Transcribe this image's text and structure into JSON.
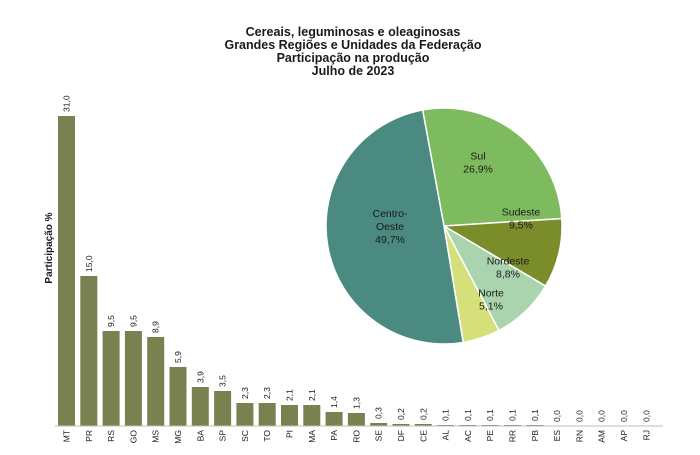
{
  "chart_data": [
    {
      "type": "bar",
      "title_lines": [
        "Cereais, leguminosas e oleaginosas",
        "Grandes Regiões e Unidades da Federação",
        "Participação na produção",
        "Julho de 2023"
      ],
      "ylabel": "Participação %",
      "xlabel": "",
      "ylim": [
        0,
        31
      ],
      "grid": false,
      "categories": [
        "MT",
        "PR",
        "RS",
        "GO",
        "MS",
        "MG",
        "BA",
        "SP",
        "SC",
        "TO",
        "PI",
        "MA",
        "PA",
        "RO",
        "SE",
        "DF",
        "CE",
        "AL",
        "AC",
        "PE",
        "RR",
        "PB",
        "ES",
        "RN",
        "AM",
        "AP",
        "RJ"
      ],
      "values": [
        31.0,
        15.0,
        9.5,
        9.5,
        8.9,
        5.9,
        3.9,
        3.5,
        2.3,
        2.3,
        2.1,
        2.1,
        1.4,
        1.3,
        0.3,
        0.2,
        0.2,
        0.1,
        0.1,
        0.1,
        0.1,
        0.1,
        0.0,
        0.0,
        0.0,
        0.0,
        0.0
      ],
      "value_labels": [
        "31,0",
        "15,0",
        "9,5",
        "9,5",
        "8,9",
        "5,9",
        "3,9",
        "3,5",
        "2,3",
        "2,3",
        "2,1",
        "2,1",
        "1,4",
        "1,3",
        "0,3",
        "0,2",
        "0,2",
        "0,1",
        "0,1",
        "0,1",
        "0,1",
        "0,1",
        "0,0",
        "0,0",
        "0,0",
        "0,0",
        "0,0"
      ],
      "bar_color": "#7a8150"
    },
    {
      "type": "pie",
      "slices": [
        {
          "name": "Sul",
          "value": 26.9,
          "label_lines": [
            "Sul",
            "26,9%"
          ],
          "color": "#7dbb5e"
        },
        {
          "name": "Sudeste",
          "value": 9.5,
          "label_lines": [
            "Sudeste",
            "9,5%"
          ],
          "color": "#7b8c2b"
        },
        {
          "name": "Nordeste",
          "value": 8.8,
          "label_lines": [
            "Nordeste",
            "8,8%"
          ],
          "color": "#a9d4ae"
        },
        {
          "name": "Norte",
          "value": 5.1,
          "label_lines": [
            "Norte",
            "5,1%"
          ],
          "color": "#d6e07a"
        },
        {
          "name": "Centro-Oeste",
          "value": 49.7,
          "label_lines": [
            "Centro-",
            "Oeste",
            "49,7%"
          ],
          "color": "#4a8a80"
        }
      ]
    }
  ]
}
